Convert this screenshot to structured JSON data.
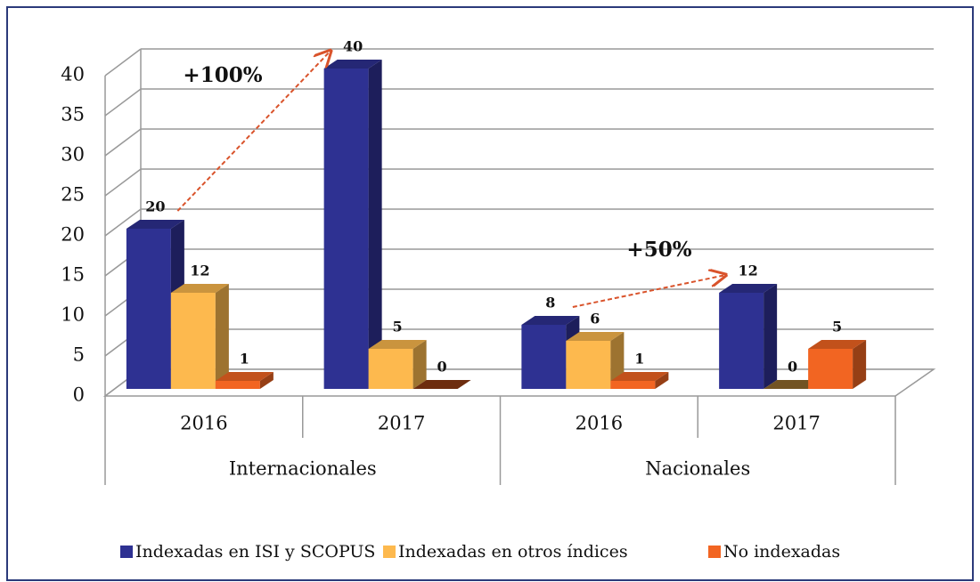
{
  "chart_data": {
    "type": "bar3d",
    "categories": [
      "2016",
      "2017",
      "2016",
      "2017"
    ],
    "group_labels": [
      "Internacionales",
      "Nacionales"
    ],
    "series": [
      {
        "name": "Indexadas en ISI y SCOPUS",
        "color": "#2e3192",
        "values": [
          20,
          40,
          8,
          12
        ]
      },
      {
        "name": "Indexadas en otros índices",
        "color": "#fdb94e",
        "values": [
          12,
          5,
          6,
          0
        ]
      },
      {
        "name": "No indexadas",
        "color": "#f26522",
        "values": [
          1,
          0,
          1,
          5
        ]
      }
    ],
    "annotations": [
      "+100%",
      "+50%"
    ],
    "ylim": [
      0,
      40
    ],
    "yticks": [
      0,
      5,
      10,
      15,
      20,
      25,
      30,
      35,
      40
    ],
    "grid": true,
    "legend": "bottom"
  }
}
